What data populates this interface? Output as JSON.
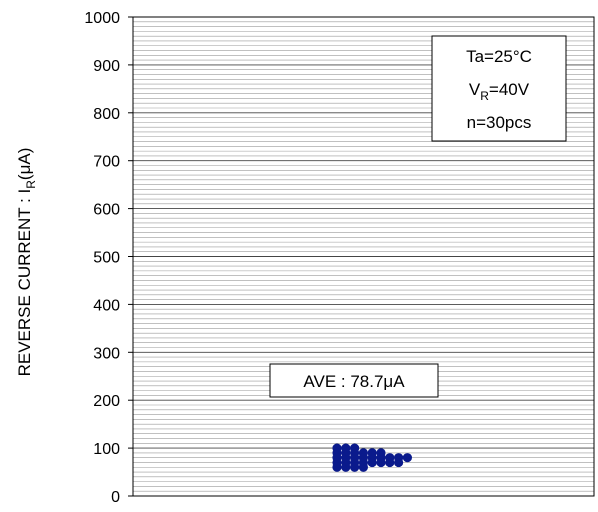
{
  "chart_data": {
    "type": "scatter",
    "ylabel_main": "REVERSE CURRENT : I",
    "ylabel_sub": "R",
    "ylabel_unit": "(μA)",
    "ylim": [
      0,
      1000
    ],
    "ytick_step": 100,
    "minor_step": 10,
    "grid": true,
    "conditions": {
      "line1": "Ta=25°C",
      "line2_main": "V",
      "line2_sub": "R",
      "line2_rest": "=40V",
      "line3": "n=30pcs"
    },
    "average_label": "AVE : 78.7μA",
    "point_color": "#0a1a8c",
    "points": [
      {
        "col": 0,
        "y": 100
      },
      {
        "col": 0,
        "y": 90
      },
      {
        "col": 0,
        "y": 80
      },
      {
        "col": 0,
        "y": 70
      },
      {
        "col": 0,
        "y": 60
      },
      {
        "col": 1,
        "y": 100
      },
      {
        "col": 1,
        "y": 90
      },
      {
        "col": 1,
        "y": 80
      },
      {
        "col": 1,
        "y": 70
      },
      {
        "col": 1,
        "y": 60
      },
      {
        "col": 2,
        "y": 100
      },
      {
        "col": 2,
        "y": 90
      },
      {
        "col": 2,
        "y": 80
      },
      {
        "col": 2,
        "y": 70
      },
      {
        "col": 2,
        "y": 60
      },
      {
        "col": 3,
        "y": 90
      },
      {
        "col": 3,
        "y": 80
      },
      {
        "col": 3,
        "y": 70
      },
      {
        "col": 3,
        "y": 60
      },
      {
        "col": 4,
        "y": 90
      },
      {
        "col": 4,
        "y": 80
      },
      {
        "col": 4,
        "y": 70
      },
      {
        "col": 5,
        "y": 90
      },
      {
        "col": 5,
        "y": 80
      },
      {
        "col": 5,
        "y": 70
      },
      {
        "col": 6,
        "y": 80
      },
      {
        "col": 6,
        "y": 70
      },
      {
        "col": 7,
        "y": 80
      },
      {
        "col": 7,
        "y": 70
      },
      {
        "col": 8,
        "y": 80
      }
    ]
  }
}
